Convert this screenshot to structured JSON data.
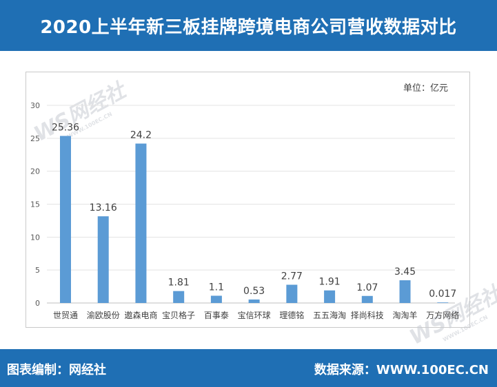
{
  "header": {
    "title": "2020上半年新三板挂牌跨境电商公司营收数据对比"
  },
  "footer": {
    "left": "图表编制：网经社",
    "right": "数据来源：WWW.100EC.CN"
  },
  "watermark": {
    "brand": "WS网经社",
    "url": "WWW.100EC.CN"
  },
  "chart_data": {
    "type": "bar",
    "unit_label": "单位：亿元",
    "categories": [
      "世贸通",
      "渝欧股份",
      "遨森电商",
      "宝贝格子",
      "百事泰",
      "宝信环球",
      "理德铭",
      "五五海淘",
      "择尚科技",
      "淘淘羊",
      "万方网络"
    ],
    "values": [
      25.36,
      13.16,
      24.2,
      1.81,
      1.1,
      0.53,
      2.77,
      1.91,
      1.07,
      3.45,
      0.017
    ],
    "value_labels": [
      "25.36",
      "13.16",
      "24.2",
      "1.81",
      "1.1",
      "0.53",
      "2.77",
      "1.91",
      "1.07",
      "3.45",
      "0.017"
    ],
    "ylim": [
      0,
      30
    ],
    "yticks": [
      0,
      5,
      10,
      15,
      20,
      25,
      30
    ],
    "grid": true,
    "bar_color": "#5b9bd5"
  }
}
